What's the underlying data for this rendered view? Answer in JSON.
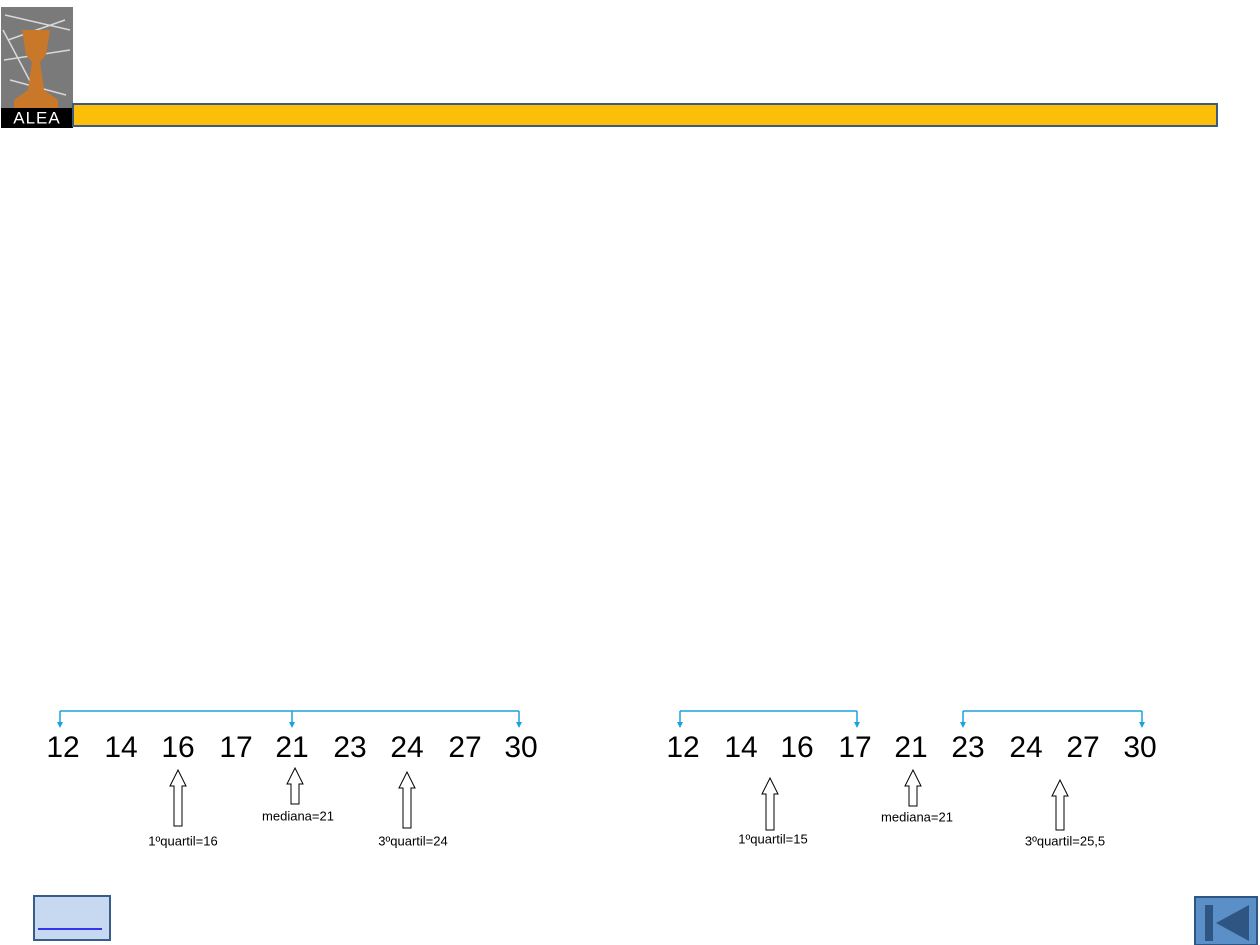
{
  "logo": {
    "text": "ALEA"
  },
  "diagrams": [
    {
      "numbers": [
        12,
        14,
        16,
        17,
        21,
        23,
        24,
        27,
        30
      ],
      "labels": {
        "q1": "1ºquartil=16",
        "median": "mediana=21",
        "q3": "3ºquartil=24"
      }
    },
    {
      "numbers": [
        12,
        14,
        16,
        17,
        21,
        23,
        24,
        27,
        30
      ],
      "labels": {
        "q1": "1ºquartil=15",
        "median": "mediana=21",
        "q3": "3ºquartil=25,5"
      }
    }
  ]
}
